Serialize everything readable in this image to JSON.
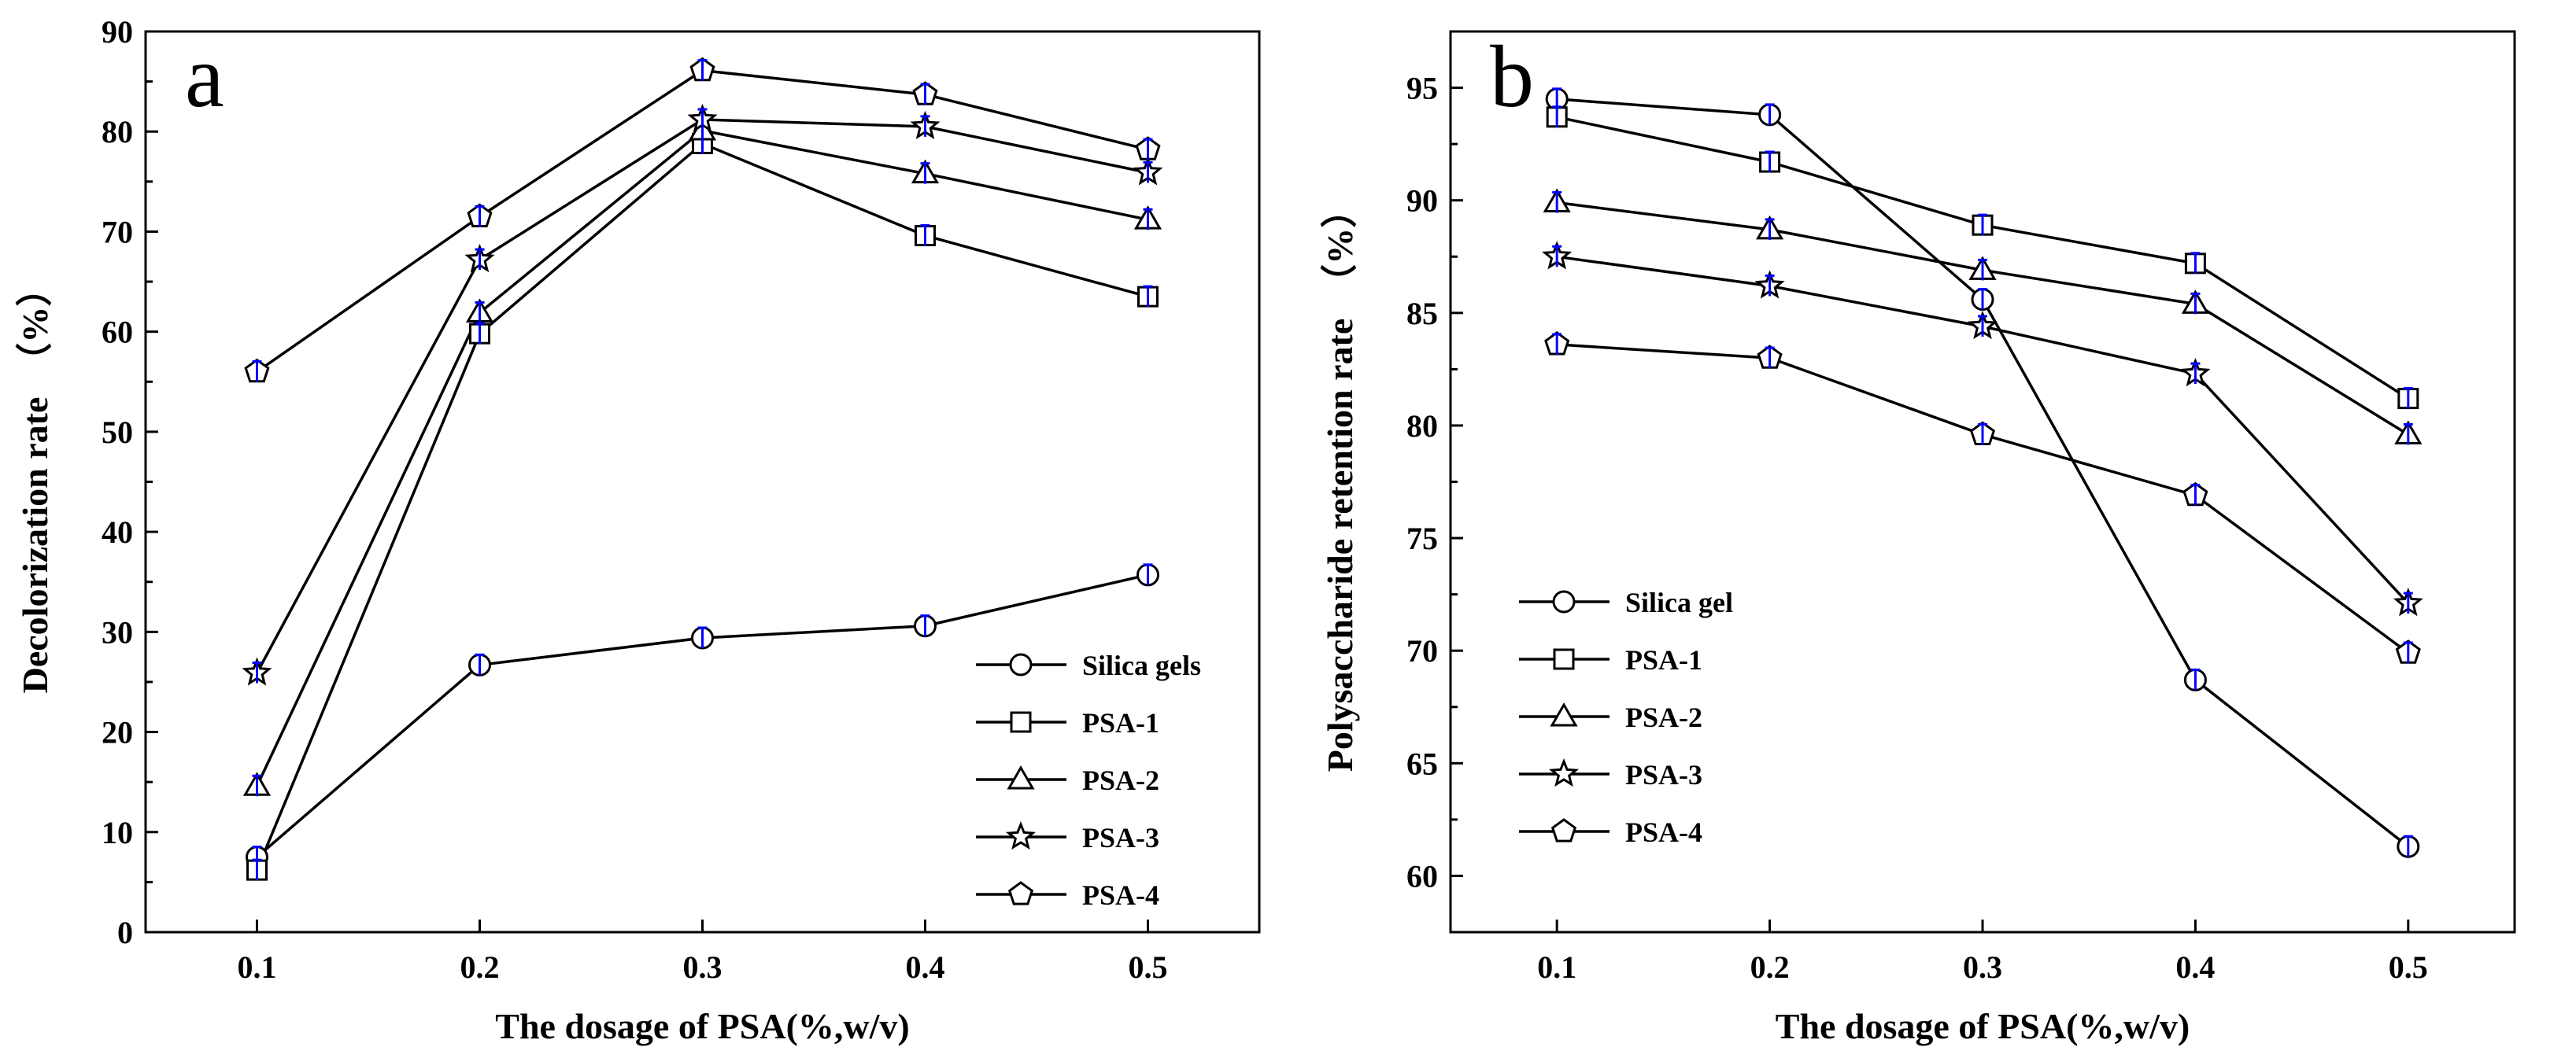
{
  "chart_data": [
    {
      "panel": "a",
      "type": "line",
      "title": "",
      "xlabel": "The dosage of PSA(%,w/v)",
      "ylabel": "Decolorization rate　（%）",
      "x": [
        0.1,
        0.2,
        0.3,
        0.4,
        0.5
      ],
      "x_tick_labels": [
        "0.1",
        "0.2",
        "0.3",
        "0.4",
        "0.5"
      ],
      "xlim": [
        0.05,
        0.55
      ],
      "ylim": [
        0,
        90
      ],
      "y_ticks": [
        0,
        10,
        20,
        30,
        40,
        50,
        60,
        70,
        80,
        90
      ],
      "grid": false,
      "legend_position": "bottom-right",
      "series": [
        {
          "name": "Silica gels",
          "marker": "circle",
          "values": [
            7.5,
            26.7,
            29.4,
            30.6,
            35.7
          ]
        },
        {
          "name": "PSA-1",
          "marker": "square",
          "values": [
            6.2,
            59.8,
            78.8,
            69.6,
            63.5
          ]
        },
        {
          "name": "PSA-2",
          "marker": "triangle",
          "values": [
            14.6,
            61.9,
            80.1,
            75.8,
            71.2
          ]
        },
        {
          "name": "PSA-3",
          "marker": "star",
          "values": [
            25.9,
            67.2,
            81.2,
            80.5,
            75.9
          ]
        },
        {
          "name": "PSA-4",
          "marker": "pentagon",
          "values": [
            56.0,
            71.5,
            86.1,
            83.7,
            78.2
          ]
        }
      ]
    },
    {
      "panel": "b",
      "type": "line",
      "title": "",
      "xlabel": "The dosage of PSA(%,w/v)",
      "ylabel": "Polysaccharide retention rate　（%）",
      "x": [
        0.1,
        0.2,
        0.3,
        0.4,
        0.5
      ],
      "x_tick_labels": [
        "0.1",
        "0.2",
        "0.3",
        "0.4",
        "0.5"
      ],
      "xlim": [
        0.05,
        0.55
      ],
      "ylim": [
        57.5,
        97.5
      ],
      "y_ticks": [
        60,
        65,
        70,
        75,
        80,
        85,
        90,
        95
      ],
      "grid": false,
      "legend_position": "center-left",
      "series": [
        {
          "name": "Silica gel",
          "marker": "circle",
          "values": [
            94.5,
            93.8,
            85.6,
            68.7,
            61.3
          ]
        },
        {
          "name": "PSA-1",
          "marker": "square",
          "values": [
            93.7,
            91.7,
            88.9,
            87.2,
            81.2
          ]
        },
        {
          "name": "PSA-2",
          "marker": "triangle",
          "values": [
            89.9,
            88.7,
            86.9,
            85.4,
            79.6
          ]
        },
        {
          "name": "PSA-3",
          "marker": "star",
          "values": [
            87.5,
            86.2,
            84.4,
            82.3,
            72.1
          ]
        },
        {
          "name": "PSA-4",
          "marker": "pentagon",
          "values": [
            83.6,
            83.0,
            79.6,
            76.9,
            69.9
          ]
        }
      ]
    }
  ],
  "colors": {
    "line": "#000000",
    "marker_fill": "#ffffff",
    "error_bar": "#0000ff",
    "background": "#ffffff"
  }
}
